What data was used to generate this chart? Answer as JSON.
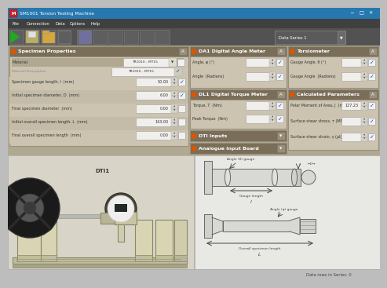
{
  "title_bar": "SM1001 Torsion Testing Machine",
  "title_bar_bg": "#2878b0",
  "menu_items": [
    "File",
    "Connection",
    "Data",
    "Options",
    "Help"
  ],
  "menu_bg": "#404040",
  "toolbar_bg": "#505050",
  "body_bg": "#b0a890",
  "panel_bg": "#ccc4b0",
  "panel_header_bg": "#7a6e58",
  "field_bg": "#f0efec",
  "window_bg": "#bdbdbd",
  "section1_title": "Specimen Properties",
  "section2_title": "DA1 Digital Angle Meter",
  "section3_title": "Torsiometer",
  "section4_title": "DL1 Digital Torque Meter",
  "section5_title": "Calculated Parameters",
  "section6_title": "DTI Inputs",
  "section7_title": "Analogue Input Board",
  "sp_fields": [
    [
      "Material",
      "TR1010 - MT15",
      true
    ],
    [
      "Material Description",
      "TR1010 - MT15",
      true
    ],
    [
      "Specimen gauge length, l  (mm)",
      "50.00",
      true
    ],
    [
      "Initial specimen diameter, D  (mm)",
      "6.00",
      true
    ],
    [
      "Final specimen diameter  (mm)",
      "0.00",
      false
    ],
    [
      "Initial overall specimen length, L  (mm)",
      "143.00",
      false
    ],
    [
      "Final overall specimen length  (mm)",
      "0.00",
      false
    ]
  ],
  "da1_fields": [
    [
      "Angle, φ (°)",
      "",
      true
    ],
    [
      "Angle  (Radians)",
      "",
      true
    ]
  ],
  "tors_fields": [
    [
      "Gauge Angle, θ (°)",
      "",
      true
    ],
    [
      "Gauge Angle  (Radians)",
      "",
      true
    ]
  ],
  "dl1_fields": [
    [
      "Torque, T  (Nm)",
      "",
      true
    ],
    [
      "Peak Torque  (Nm)",
      "",
      true
    ]
  ],
  "calc_fields": [
    [
      "Polar Moment of Area, J  (mm⁴)",
      "127.23",
      true
    ],
    [
      "Surface shear stress, τ (MN.m⁻²)",
      "",
      true
    ],
    [
      "Surface shear strain, γ (μt)",
      "",
      true
    ]
  ],
  "statusbar_text": "Data rows in Series: 0",
  "dataseries_label": "Data Series 1",
  "machine_bg": "#d8d4c8",
  "diagram_bg": "#e8e8e4",
  "statusbar_bg": "#bdbdbd"
}
